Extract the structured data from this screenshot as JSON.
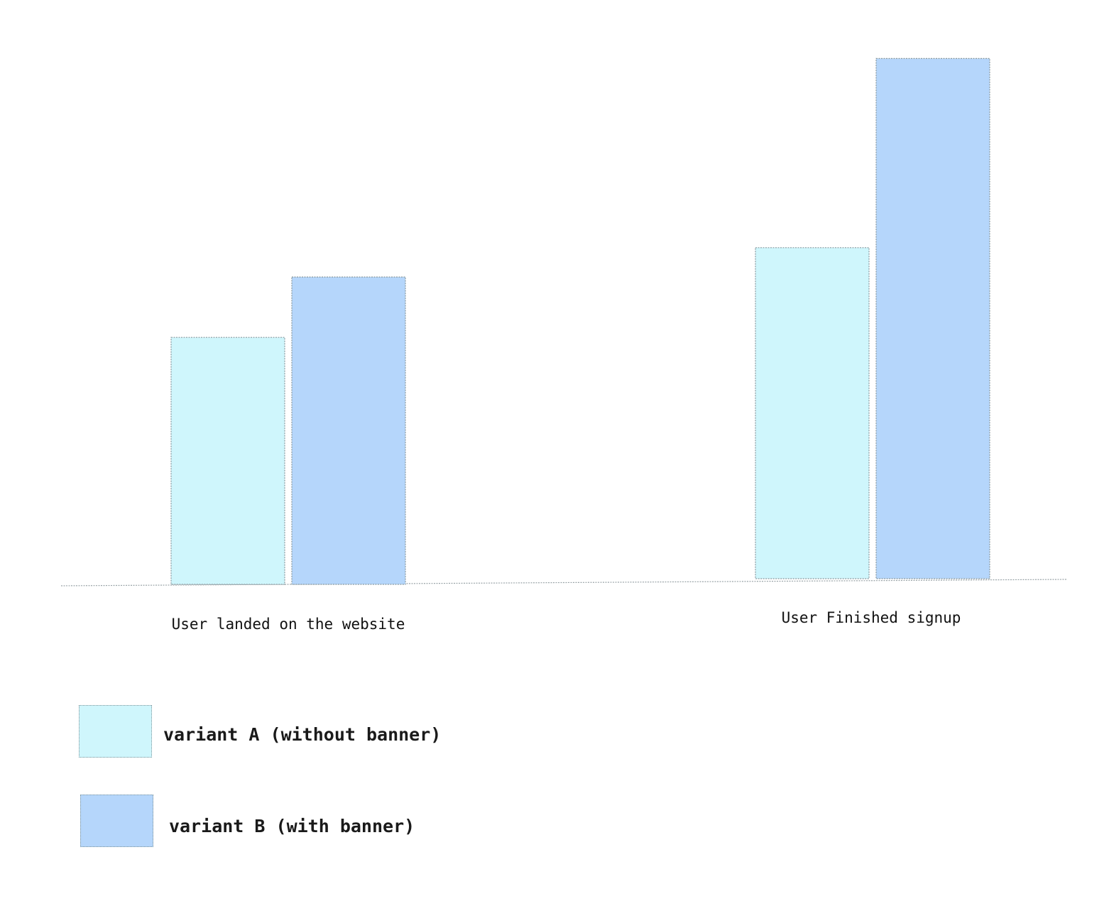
{
  "chart_data": {
    "type": "bar",
    "categories": [
      "User landed on the website",
      "User Finished signup"
    ],
    "series": [
      {
        "name": "variant A (without banner)",
        "color": "#cff6fc",
        "values": [
          47,
          63
        ]
      },
      {
        "name": "variant B (with banner)",
        "color": "#b5d6fb",
        "values": [
          58.5,
          99
        ]
      }
    ],
    "title": "",
    "xlabel": "",
    "ylabel": "",
    "ylim": [
      0,
      100
    ],
    "grid": false,
    "legend_position": "bottom-left"
  },
  "legend": {
    "items": [
      {
        "label": "variant A (without banner)",
        "color": "#cff6fc",
        "icon": "swatch-icon"
      },
      {
        "label": "variant B (with banner)",
        "color": "#b5d6fb",
        "icon": "swatch-icon"
      }
    ]
  }
}
